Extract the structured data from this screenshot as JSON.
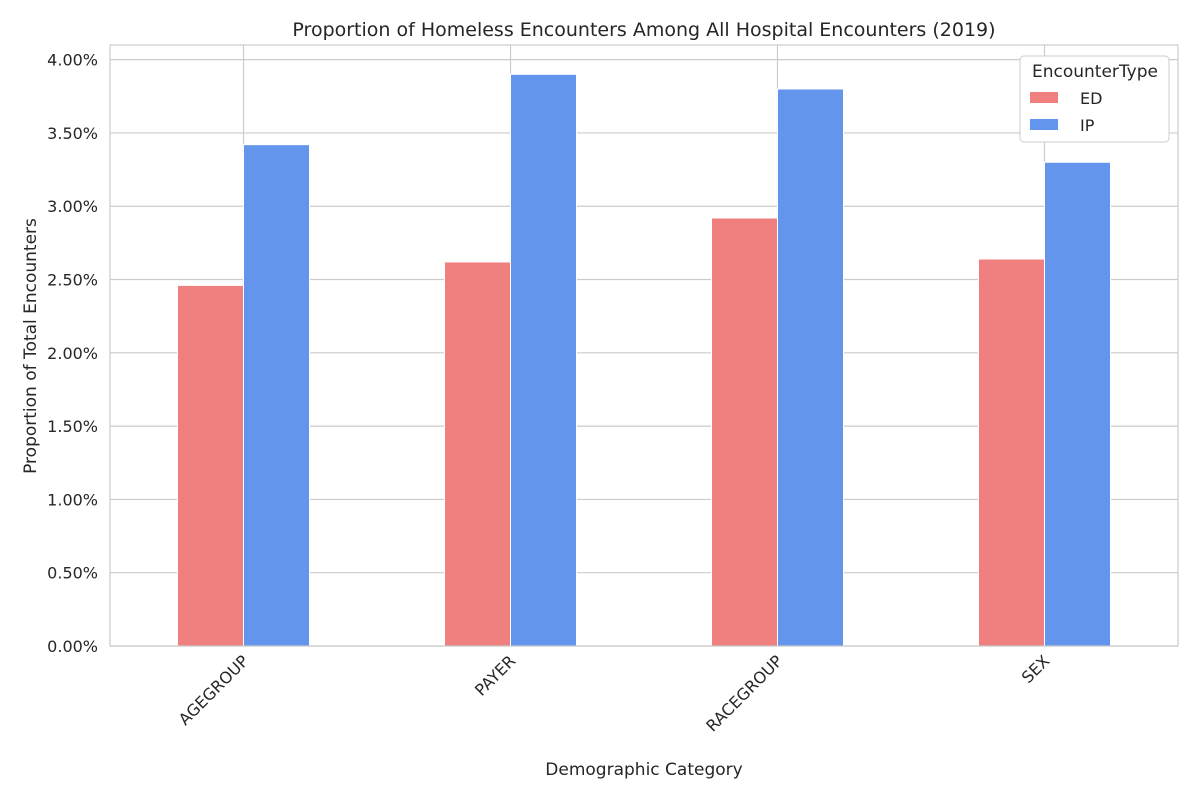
{
  "chart_data": {
    "type": "bar",
    "title": "Proportion of Homeless Encounters Among All Hospital Encounters (2019)",
    "xlabel": "Demographic Category",
    "ylabel": "Proportion of Total Encounters",
    "categories": [
      "AGEGROUP",
      "PAYER",
      "RACEGROUP",
      "SEX"
    ],
    "series": [
      {
        "name": "ED",
        "values": [
          0.0246,
          0.0262,
          0.0292,
          0.0264
        ],
        "color": "#f08080"
      },
      {
        "name": "IP",
        "values": [
          0.0342,
          0.039,
          0.038,
          0.033
        ],
        "color": "#6495ed"
      }
    ],
    "ylim": [
      0,
      0.041
    ],
    "yticks": [
      0,
      0.005,
      0.01,
      0.015,
      0.02,
      0.025,
      0.03,
      0.035,
      0.04
    ],
    "ytick_labels": [
      "0.00%",
      "0.50%",
      "1.00%",
      "1.50%",
      "2.00%",
      "2.50%",
      "3.00%",
      "3.50%",
      "4.00%"
    ],
    "legend": {
      "title": "EncounterType",
      "position": "top-right"
    },
    "grid": true
  }
}
